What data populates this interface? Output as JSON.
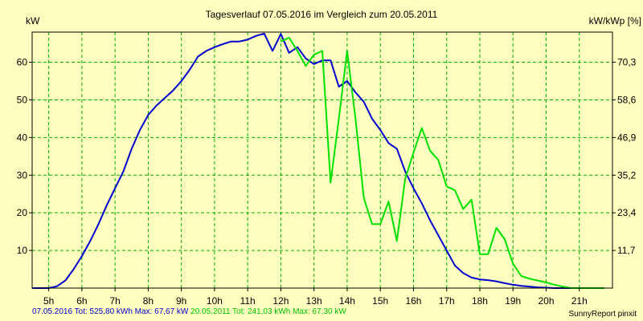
{
  "chart_data": {
    "type": "line",
    "title": "Tagesverlauf 07.05.2016 im Vergleich zum 20.05.2011",
    "ylabel_left": "kW",
    "ylabel_right": "kW/kWp [%]",
    "x_unit": "hour",
    "xlim": [
      4.5,
      22.0
    ],
    "ylim": [
      0,
      68
    ],
    "x_ticks": [
      5,
      6,
      7,
      8,
      9,
      10,
      11,
      12,
      13,
      14,
      15,
      16,
      17,
      18,
      19,
      20,
      21
    ],
    "x_tick_labels": [
      "5h",
      "6h",
      "7h",
      "8h",
      "9h",
      "10h",
      "11h",
      "12h",
      "13h",
      "14h",
      "15h",
      "16h",
      "17h",
      "18h",
      "19h",
      "20h",
      "21h"
    ],
    "y_left_ticks": [
      10,
      20,
      30,
      40,
      50,
      60
    ],
    "y_right_ticks": [
      {
        "kw": 10,
        "label": "11,7"
      },
      {
        "kw": 20,
        "label": "23,4"
      },
      {
        "kw": 30,
        "label": "35,2"
      },
      {
        "kw": 40,
        "label": "46,9"
      },
      {
        "kw": 50,
        "label": "58,6"
      },
      {
        "kw": 60,
        "label": "70,3"
      }
    ],
    "grid": true,
    "series": [
      {
        "name": "07.05.2016",
        "color": "#0000d0",
        "points": [
          [
            4.5,
            0
          ],
          [
            5.0,
            0
          ],
          [
            5.25,
            0.5
          ],
          [
            5.5,
            2
          ],
          [
            5.75,
            5
          ],
          [
            6.0,
            8.5
          ],
          [
            6.25,
            12.5
          ],
          [
            6.5,
            17
          ],
          [
            6.75,
            22
          ],
          [
            7.0,
            26.5
          ],
          [
            7.25,
            31
          ],
          [
            7.5,
            37
          ],
          [
            7.75,
            42
          ],
          [
            8.0,
            46
          ],
          [
            8.25,
            48.5
          ],
          [
            8.5,
            50.5
          ],
          [
            8.75,
            52.5
          ],
          [
            9.0,
            55
          ],
          [
            9.25,
            58
          ],
          [
            9.5,
            61.5
          ],
          [
            9.75,
            63
          ],
          [
            10.0,
            64
          ],
          [
            10.25,
            64.8
          ],
          [
            10.5,
            65.5
          ],
          [
            10.75,
            65.5
          ],
          [
            11.0,
            66
          ],
          [
            11.25,
            67
          ],
          [
            11.5,
            67.6
          ],
          [
            11.75,
            63
          ],
          [
            12.0,
            67.5
          ],
          [
            12.25,
            62.5
          ],
          [
            12.5,
            64
          ],
          [
            12.75,
            61
          ],
          [
            13.0,
            59.5
          ],
          [
            13.25,
            60.5
          ],
          [
            13.5,
            60.5
          ],
          [
            13.75,
            53.5
          ],
          [
            14.0,
            55
          ],
          [
            14.25,
            52
          ],
          [
            14.5,
            49.5
          ],
          [
            14.75,
            45
          ],
          [
            15.0,
            42
          ],
          [
            15.25,
            38.5
          ],
          [
            15.5,
            37
          ],
          [
            15.75,
            31
          ],
          [
            16.0,
            26.5
          ],
          [
            16.25,
            22.5
          ],
          [
            16.5,
            18
          ],
          [
            16.75,
            14
          ],
          [
            17.0,
            10
          ],
          [
            17.25,
            6
          ],
          [
            17.5,
            4
          ],
          [
            17.75,
            2.8
          ],
          [
            18.0,
            2.3
          ],
          [
            18.25,
            2.1
          ],
          [
            18.5,
            1.8
          ],
          [
            18.75,
            1.3
          ],
          [
            19.0,
            0.9
          ],
          [
            19.25,
            0.6
          ],
          [
            19.5,
            0.4
          ],
          [
            19.75,
            0.2
          ],
          [
            20.0,
            0.1
          ],
          [
            20.25,
            0
          ],
          [
            21.75,
            0
          ]
        ]
      },
      {
        "name": "20.05.2011",
        "color": "#00e000",
        "points": [
          [
            12.0,
            65.5
          ],
          [
            12.25,
            66.5
          ],
          [
            12.5,
            63
          ],
          [
            12.75,
            59
          ],
          [
            13.0,
            62
          ],
          [
            13.25,
            63
          ],
          [
            13.5,
            28
          ],
          [
            13.75,
            45
          ],
          [
            14.0,
            63
          ],
          [
            14.25,
            45
          ],
          [
            14.5,
            24
          ],
          [
            14.75,
            17
          ],
          [
            15.0,
            17
          ],
          [
            15.25,
            23
          ],
          [
            15.5,
            12.5
          ],
          [
            15.75,
            29
          ],
          [
            16.0,
            36
          ],
          [
            16.25,
            42.5
          ],
          [
            16.5,
            36.5
          ],
          [
            16.75,
            34
          ],
          [
            17.0,
            27
          ],
          [
            17.25,
            26
          ],
          [
            17.5,
            21
          ],
          [
            17.75,
            23.5
          ],
          [
            18.0,
            9
          ],
          [
            18.25,
            9
          ],
          [
            18.5,
            16
          ],
          [
            18.75,
            13
          ],
          [
            19.0,
            6.5
          ],
          [
            19.25,
            3.2
          ],
          [
            19.5,
            2.5
          ],
          [
            19.75,
            2
          ],
          [
            20.0,
            1.5
          ],
          [
            20.25,
            0.9
          ],
          [
            20.5,
            0.4
          ],
          [
            20.75,
            0
          ],
          [
            21.75,
            0
          ]
        ]
      }
    ],
    "legend": {
      "s1": "07.05.2016 Tot: 525,80 kWh Max: 67,67 kW",
      "s2": "20.05.2011 Tot: 241,03 kWh Max: 67,30 kW"
    },
    "credit": "SunnyReport pinxit"
  }
}
